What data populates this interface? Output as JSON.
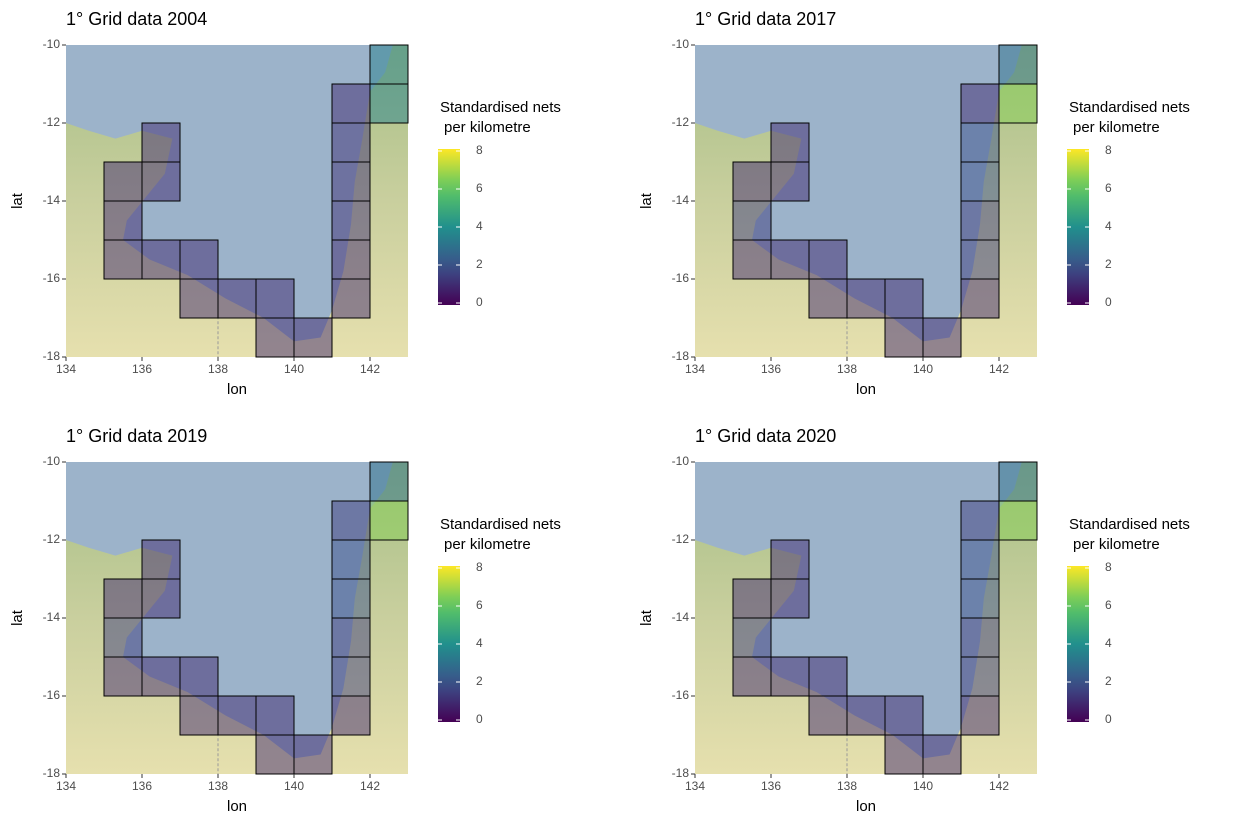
{
  "chart_data": [
    {
      "type": "tile",
      "title": "1° Grid data 2004",
      "xlabel": "lon",
      "ylabel": "lat",
      "xlim": [
        134,
        143
      ],
      "ylim": [
        -18,
        -10
      ],
      "xticks": [
        134,
        136,
        138,
        140,
        142
      ],
      "yticks": [
        -18,
        -16,
        -14,
        -12,
        -10
      ],
      "legend_title": [
        "Standardised nets",
        "per kilometre"
      ],
      "clim": [
        0,
        8
      ],
      "cticks": [
        0,
        2,
        4,
        6,
        8
      ],
      "x": [
        142,
        142,
        141,
        141,
        141,
        141,
        141,
        141,
        136,
        136,
        135,
        135,
        135,
        136,
        137,
        137,
        138,
        139,
        139,
        140
      ],
      "y": [
        -11,
        -12,
        -12,
        -13,
        -14,
        -15,
        -16,
        -17,
        -13,
        -14,
        -14,
        -15,
        -16,
        -16,
        -16,
        -17,
        -17,
        -17,
        -18,
        -18
      ],
      "values": [
        3.5,
        3.5,
        1,
        1.2,
        1.2,
        1.2,
        1,
        1,
        1,
        1,
        1,
        1,
        1,
        1,
        1,
        1,
        1,
        1,
        1,
        1
      ]
    },
    {
      "type": "tile",
      "title": "1° Grid data 2017",
      "xlabel": "lon",
      "ylabel": "lat",
      "xlim": [
        134,
        143
      ],
      "ylim": [
        -18,
        -10
      ],
      "xticks": [
        134,
        136,
        138,
        140,
        142
      ],
      "yticks": [
        -18,
        -16,
        -14,
        -12,
        -10
      ],
      "legend_title": [
        "Standardised nets",
        "per kilometre"
      ],
      "clim": [
        0,
        8
      ],
      "cticks": [
        0,
        2,
        4,
        6,
        8
      ],
      "x": [
        142,
        142,
        141,
        141,
        141,
        141,
        141,
        141,
        136,
        136,
        135,
        135,
        135,
        136,
        137,
        137,
        138,
        139,
        139,
        140
      ],
      "y": [
        -11,
        -12,
        -12,
        -13,
        -14,
        -15,
        -16,
        -17,
        -13,
        -14,
        -14,
        -15,
        -16,
        -16,
        -16,
        -17,
        -17,
        -17,
        -18,
        -18
      ],
      "values": [
        3,
        6.5,
        1,
        2,
        2,
        1.5,
        1.5,
        1,
        1,
        1,
        1,
        1.5,
        1,
        1,
        1,
        1,
        1,
        1,
        1,
        1
      ]
    },
    {
      "type": "tile",
      "title": "1° Grid data 2019",
      "xlabel": "lon",
      "ylabel": "lat",
      "xlim": [
        134,
        143
      ],
      "ylim": [
        -18,
        -10
      ],
      "xticks": [
        134,
        136,
        138,
        140,
        142
      ],
      "yticks": [
        -18,
        -16,
        -14,
        -12,
        -10
      ],
      "legend_title": [
        "Standardised nets",
        "per kilometre"
      ],
      "clim": [
        0,
        8
      ],
      "cticks": [
        0,
        2,
        4,
        6,
        8
      ],
      "x": [
        142,
        142,
        141,
        141,
        141,
        141,
        141,
        141,
        136,
        136,
        135,
        135,
        135,
        136,
        137,
        137,
        138,
        139,
        139,
        140
      ],
      "y": [
        -11,
        -12,
        -12,
        -13,
        -14,
        -15,
        -16,
        -17,
        -13,
        -14,
        -14,
        -15,
        -16,
        -16,
        -16,
        -17,
        -17,
        -17,
        -18,
        -18
      ],
      "values": [
        3,
        6.5,
        1.5,
        2,
        2,
        1.5,
        1.5,
        1,
        1,
        1,
        1,
        1.5,
        1,
        1,
        1,
        1,
        1,
        1,
        1,
        1
      ]
    },
    {
      "type": "tile",
      "title": "1° Grid data 2020",
      "xlabel": "lon",
      "ylabel": "lat",
      "xlim": [
        134,
        143
      ],
      "ylim": [
        -18,
        -10
      ],
      "xticks": [
        134,
        136,
        138,
        140,
        142
      ],
      "yticks": [
        -18,
        -16,
        -14,
        -12,
        -10
      ],
      "legend_title": [
        "Standardised nets",
        "per kilometre"
      ],
      "clim": [
        0,
        8
      ],
      "cticks": [
        0,
        2,
        4,
        6,
        8
      ],
      "x": [
        142,
        142,
        141,
        141,
        141,
        141,
        141,
        141,
        136,
        136,
        135,
        135,
        135,
        136,
        137,
        137,
        138,
        139,
        139,
        140
      ],
      "y": [
        -11,
        -12,
        -12,
        -13,
        -14,
        -15,
        -16,
        -17,
        -13,
        -14,
        -14,
        -15,
        -16,
        -16,
        -16,
        -17,
        -17,
        -17,
        -18,
        -18
      ],
      "values": [
        3,
        6.5,
        1.5,
        2,
        2,
        1.5,
        1.5,
        1,
        1,
        1,
        1,
        1.5,
        1,
        1,
        1,
        1,
        1,
        1,
        1,
        1
      ]
    }
  ]
}
